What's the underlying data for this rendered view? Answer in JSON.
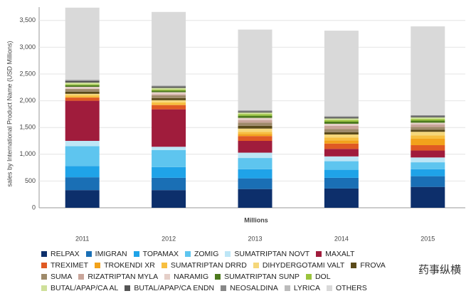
{
  "chart_data": {
    "type": "stacked-bar",
    "y_label": "sales by International Product Name (USD Millions)",
    "x_label": "Millions",
    "watermark": "药事纵横",
    "categories": [
      "2011",
      "2012",
      "2013",
      "2014",
      "2015"
    ],
    "ylim": [
      0,
      3750
    ],
    "yticks": [
      0,
      500,
      {
        "value": 1000,
        "label": "1,000"
      },
      {
        "value": 1500,
        "label": "1,500"
      },
      {
        "value": 2000,
        "label": "2,000"
      },
      {
        "value": 2500,
        "label": "2,500"
      },
      {
        "value": 3000,
        "label": "3,000"
      },
      {
        "value": 3500,
        "label": "3,500"
      }
    ],
    "grid": true,
    "series": [
      {
        "name": "RELPAX",
        "color": "#0d2f6b",
        "values": [
          330,
          330,
          350,
          360,
          390
        ]
      },
      {
        "name": "IMIGRAN",
        "color": "#1a6fb5",
        "values": [
          240,
          230,
          200,
          200,
          200
        ]
      },
      {
        "name": "TOPAMAX",
        "color": "#1fa3e8",
        "values": [
          210,
          200,
          170,
          150,
          130
        ]
      },
      {
        "name": "ZOMIG",
        "color": "#5ec5ef",
        "values": [
          370,
          320,
          210,
          160,
          130
        ]
      },
      {
        "name": "SUMATRIPTAN NOVT",
        "color": "#bde6f6",
        "values": [
          100,
          60,
          100,
          90,
          90
        ]
      },
      {
        "name": "MAXALT",
        "color": "#a01c3c",
        "values": [
          750,
          700,
          220,
          140,
          130
        ]
      },
      {
        "name": "TREXIMET",
        "color": "#e05a23",
        "values": [
          60,
          80,
          90,
          100,
          100
        ]
      },
      {
        "name": "TROKENDI XR",
        "color": "#f2a21b",
        "values": [
          0,
          0,
          40,
          60,
          120
        ]
      },
      {
        "name": "SUMATRIPTAN DRRD",
        "color": "#f7bf40",
        "values": [
          40,
          50,
          40,
          50,
          60
        ]
      },
      {
        "name": "DIHYDERGOTAMI VALT",
        "color": "#f5d77a",
        "values": [
          30,
          40,
          60,
          60,
          70
        ]
      },
      {
        "name": "FROVA",
        "color": "#5a4a1a",
        "values": [
          40,
          40,
          50,
          40,
          40
        ]
      },
      {
        "name": "SUMA",
        "color": "#9e8a6a",
        "values": [
          50,
          50,
          60,
          60,
          50
        ]
      },
      {
        "name": "RIZATRIPTAN MYLA",
        "color": "#c9a59a",
        "values": [
          0,
          20,
          50,
          60,
          50
        ]
      },
      {
        "name": "NARAMIG",
        "color": "#e5cfc8",
        "values": [
          40,
          40,
          40,
          40,
          30
        ]
      },
      {
        "name": "SUMATRIPTAN SUNP",
        "color": "#4d7a1e",
        "values": [
          30,
          30,
          40,
          40,
          40
        ]
      },
      {
        "name": "DOL",
        "color": "#9ac43c",
        "values": [
          20,
          20,
          30,
          30,
          30
        ]
      },
      {
        "name": "BUTAL/APAP/CA AL",
        "color": "#cfe09a",
        "values": [
          30,
          30,
          30,
          30,
          30
        ]
      },
      {
        "name": "BUTAL/APAP/CA ENDN",
        "color": "#555555",
        "values": [
          30,
          20,
          20,
          20,
          20
        ]
      },
      {
        "name": "NEOSALDINA",
        "color": "#888888",
        "values": [
          20,
          20,
          20,
          20,
          20
        ]
      },
      {
        "name": "LYRICA",
        "color": "#bbbbbb",
        "values": [
          0,
          0,
          0,
          0,
          0
        ]
      },
      {
        "name": "OTHERS",
        "color": "#d9d9d9",
        "values": [
          1350,
          1380,
          1510,
          1600,
          1660
        ]
      }
    ]
  }
}
